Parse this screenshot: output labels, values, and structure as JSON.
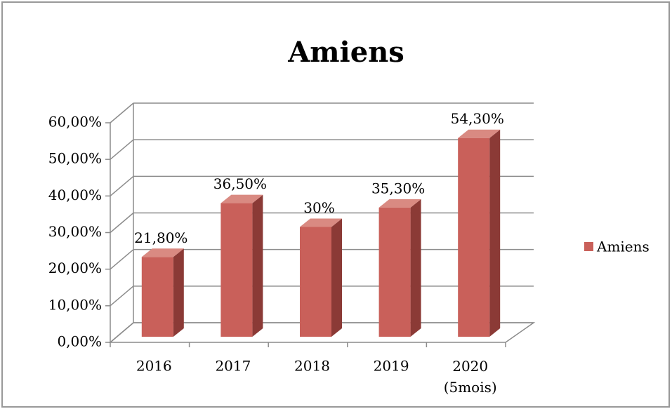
{
  "chart_data": {
    "type": "bar3d",
    "title": "Amiens",
    "categories": [
      "2016",
      "2017",
      "2018",
      "2019",
      "2020 (5mois)"
    ],
    "series": [
      {
        "name": "Amiens",
        "color": "#c9605a",
        "values": [
          21.8,
          36.5,
          30,
          35.3,
          54.3
        ],
        "value_labels": [
          "21,80%",
          "36,50%",
          "30%",
          "35,30%",
          "54,30%"
        ]
      }
    ],
    "ylim": [
      0,
      60
    ],
    "yticks": [
      {
        "value": 0,
        "label": "0,00%"
      },
      {
        "value": 10,
        "label": "10,00%"
      },
      {
        "value": 20,
        "label": "20,00%"
      },
      {
        "value": 30,
        "label": "30,00%"
      },
      {
        "value": 40,
        "label": "40,00%"
      },
      {
        "value": 50,
        "label": "50,00%"
      },
      {
        "value": 60,
        "label": "60,00%"
      }
    ],
    "grid": true,
    "legend": "right"
  }
}
